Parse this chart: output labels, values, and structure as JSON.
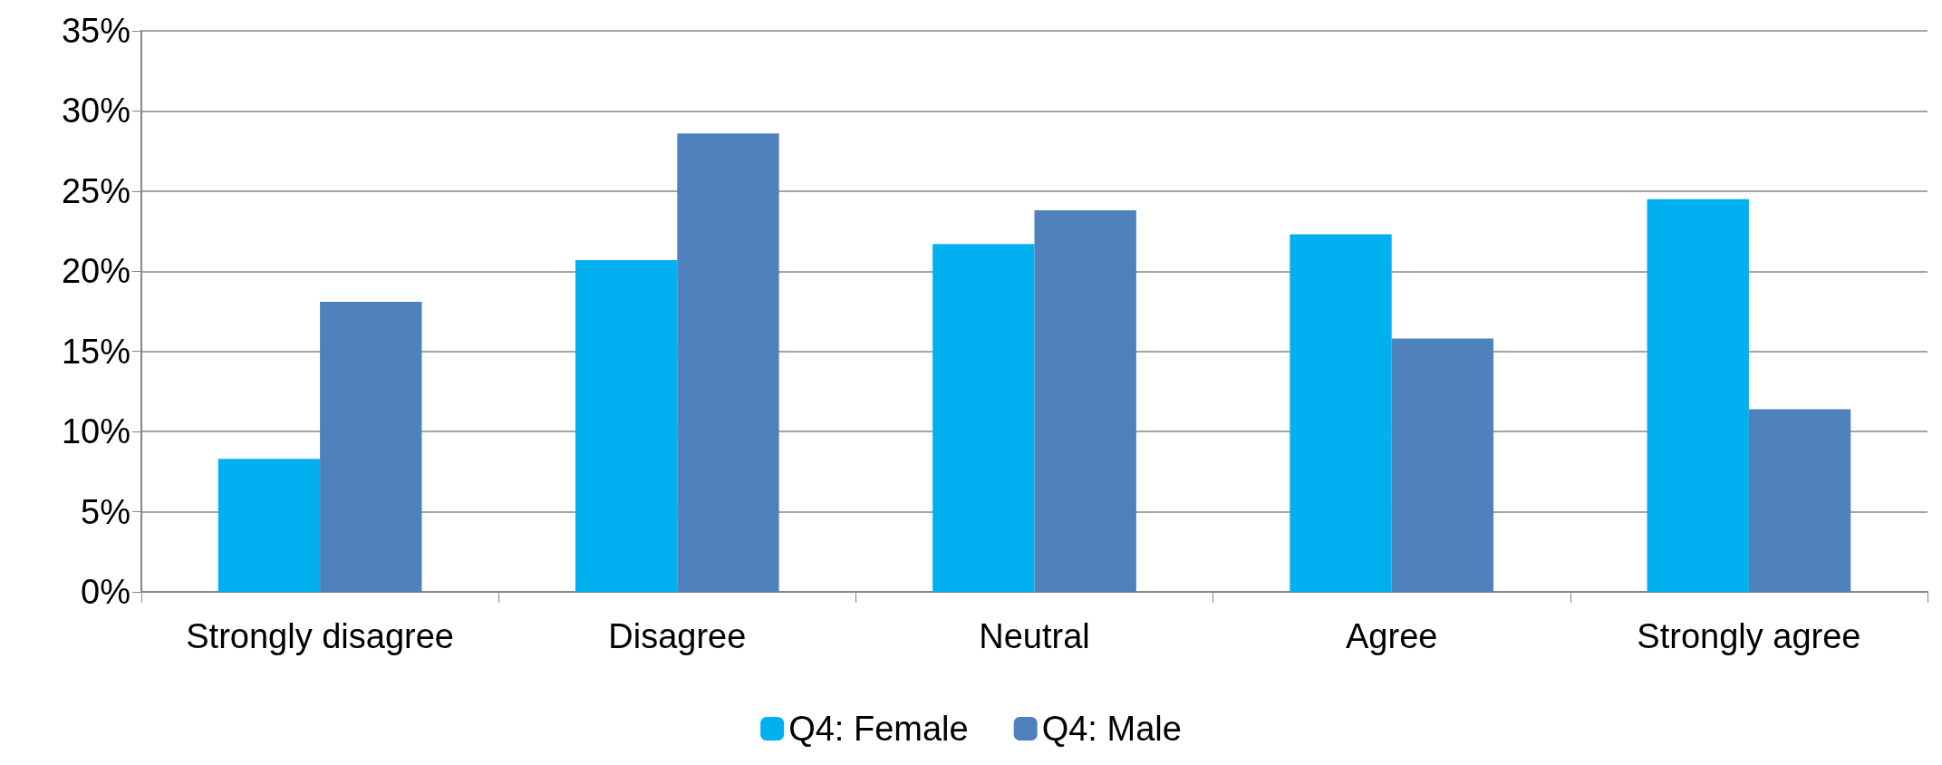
{
  "chart_data": {
    "type": "bar",
    "categories": [
      "Strongly disagree",
      "Disagree",
      "Neutral",
      "Agree",
      "Strongly agree"
    ],
    "series": [
      {
        "name": "Q4: Female",
        "color": "#00b0f0",
        "values": [
          8.3,
          20.7,
          21.7,
          22.3,
          24.5
        ]
      },
      {
        "name": "Q4: Male",
        "color": "#4f81bd",
        "values": [
          18.1,
          28.6,
          23.8,
          15.8,
          11.4
        ]
      }
    ],
    "ylim": [
      0,
      35
    ],
    "yticks": [
      {
        "value": 0,
        "label": "0%"
      },
      {
        "value": 5,
        "label": "5%"
      },
      {
        "value": 10,
        "label": "10%"
      },
      {
        "value": 15,
        "label": "15%"
      },
      {
        "value": 20,
        "label": "20%"
      },
      {
        "value": 25,
        "label": "25%"
      },
      {
        "value": 30,
        "label": "30%"
      },
      {
        "value": 35,
        "label": "35%"
      }
    ],
    "grid": "y",
    "legend": "bottom"
  }
}
